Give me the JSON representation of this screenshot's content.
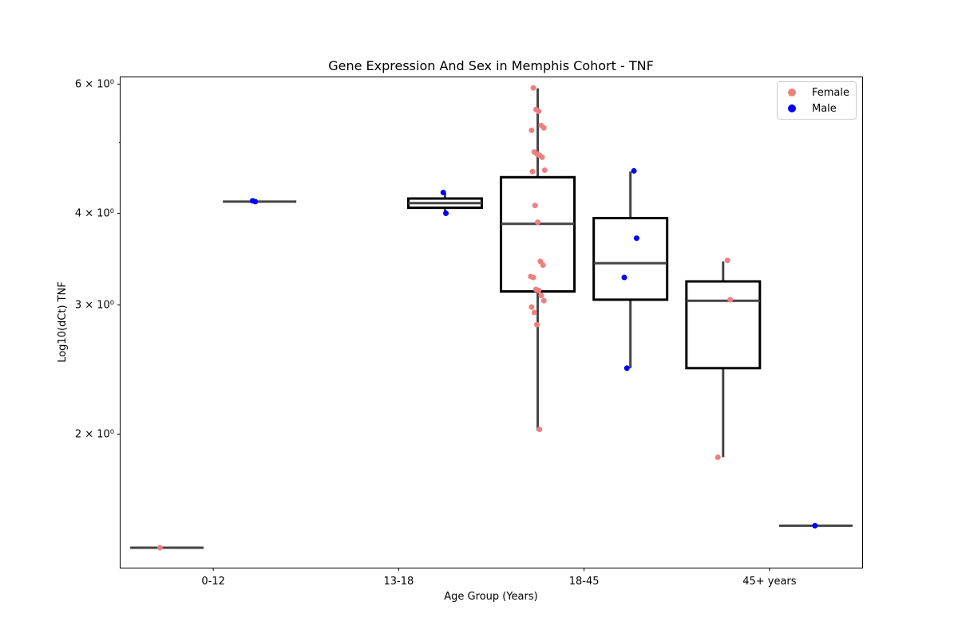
{
  "chart_data": {
    "type": "box",
    "title": "Gene Expression And Sex in Memphis Cohort - TNF",
    "xlabel": "Age Group (Years)",
    "ylabel": "Log10(dCt) TNF",
    "y_scale": "log",
    "ylim": [
      1.315,
      6.13
    ],
    "y_ticks": [
      {
        "value": 2,
        "label": "2 × 10⁰"
      },
      {
        "value": 3,
        "label": "3 × 10⁰"
      },
      {
        "value": 4,
        "label": "4 × 10⁰"
      },
      {
        "value": 6,
        "label": "6 × 10⁰"
      }
    ],
    "y_minor_ticks": [
      5
    ],
    "categories": [
      "0-12",
      "13-18",
      "18-45",
      "45+ years"
    ],
    "hue_order": [
      "Female",
      "Male"
    ],
    "legend": {
      "position": "top-right",
      "entries": [
        {
          "label": "Female",
          "color": "#f08080"
        },
        {
          "label": "Male",
          "color": "#0000ff"
        }
      ]
    },
    "grid": false,
    "boxes": [
      {
        "category": "0-12",
        "sex": "Female",
        "q1": 1.4,
        "median": 1.4,
        "q3": 1.4,
        "whisker_low": 1.4,
        "whisker_high": 1.4
      },
      {
        "category": "0-12",
        "sex": "Male",
        "q1": 4.15,
        "median": 4.15,
        "q3": 4.15,
        "whisker_low": 4.15,
        "whisker_high": 4.15
      },
      {
        "category": "13-18",
        "sex": "Female",
        "q1": null,
        "median": null,
        "q3": null,
        "whisker_low": null,
        "whisker_high": null
      },
      {
        "category": "13-18",
        "sex": "Male",
        "q1": 4.07,
        "median": 4.13,
        "q3": 4.19,
        "whisker_low": 4.0,
        "whisker_high": 4.26
      },
      {
        "category": "18-45",
        "sex": "Female",
        "q1": 3.13,
        "median": 3.87,
        "q3": 4.48,
        "whisker_low": 2.02,
        "whisker_high": 5.92
      },
      {
        "category": "18-45",
        "sex": "Male",
        "q1": 3.05,
        "median": 3.42,
        "q3": 3.94,
        "whisker_low": 2.46,
        "whisker_high": 4.56
      },
      {
        "category": "45+ years",
        "sex": "Female",
        "q1": 2.46,
        "median": 3.04,
        "q3": 3.23,
        "whisker_low": 1.86,
        "whisker_high": 3.44
      },
      {
        "category": "45+ years",
        "sex": "Male",
        "q1": 1.5,
        "median": 1.5,
        "q3": 1.5,
        "whisker_low": 1.5,
        "whisker_high": 1.5
      }
    ],
    "points": {
      "Female": [
        {
          "category": "0-12",
          "y": 1.4
        },
        {
          "category": "18-45",
          "y": 5.93
        },
        {
          "category": "18-45",
          "y": 5.54
        },
        {
          "category": "18-45",
          "y": 5.51
        },
        {
          "category": "18-45",
          "y": 5.27
        },
        {
          "category": "18-45",
          "y": 5.23
        },
        {
          "category": "18-45",
          "y": 5.19
        },
        {
          "category": "18-45",
          "y": 4.85
        },
        {
          "category": "18-45",
          "y": 4.82
        },
        {
          "category": "18-45",
          "y": 4.8
        },
        {
          "category": "18-45",
          "y": 4.77
        },
        {
          "category": "18-45",
          "y": 4.58
        },
        {
          "category": "18-45",
          "y": 4.56
        },
        {
          "category": "18-45",
          "y": 4.1
        },
        {
          "category": "18-45",
          "y": 3.89
        },
        {
          "category": "18-45",
          "y": 3.44
        },
        {
          "category": "18-45",
          "y": 3.4
        },
        {
          "category": "18-45",
          "y": 3.28
        },
        {
          "category": "18-45",
          "y": 3.27
        },
        {
          "category": "18-45",
          "y": 3.15
        },
        {
          "category": "18-45",
          "y": 3.14
        },
        {
          "category": "18-45",
          "y": 3.09
        },
        {
          "category": "18-45",
          "y": 3.04
        },
        {
          "category": "18-45",
          "y": 2.98
        },
        {
          "category": "18-45",
          "y": 2.93
        },
        {
          "category": "18-45",
          "y": 2.82
        },
        {
          "category": "18-45",
          "y": 2.03
        },
        {
          "category": "45+ years",
          "y": 3.45
        },
        {
          "category": "45+ years",
          "y": 3.05
        },
        {
          "category": "45+ years",
          "y": 1.86
        }
      ],
      "Male": [
        {
          "category": "0-12",
          "y": 4.16
        },
        {
          "category": "0-12",
          "y": 4.15
        },
        {
          "category": "13-18",
          "y": 4.27
        },
        {
          "category": "13-18",
          "y": 4.0
        },
        {
          "category": "18-45",
          "y": 4.57
        },
        {
          "category": "18-45",
          "y": 3.7
        },
        {
          "category": "18-45",
          "y": 3.27
        },
        {
          "category": "18-45",
          "y": 2.46
        },
        {
          "category": "45+ years",
          "y": 1.5
        }
      ]
    },
    "colors": {
      "female": "#f08080",
      "male": "#0000ff",
      "box_edge": "#000000",
      "whisker": "#444444"
    }
  }
}
